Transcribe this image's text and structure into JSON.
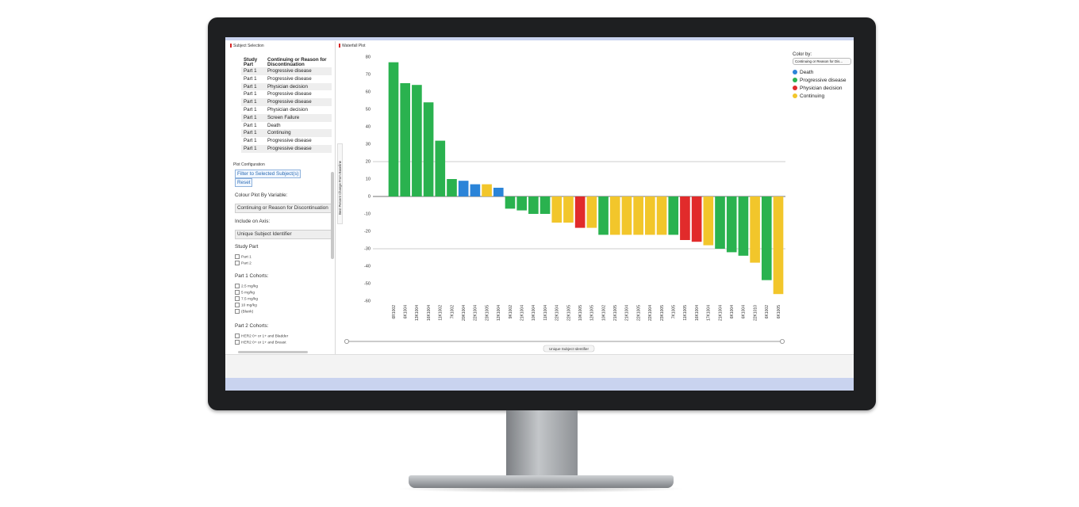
{
  "subject_panel": {
    "title": "Subject Selection",
    "columns": [
      "Study Part",
      "Continuing or Reason for Discontinuation"
    ],
    "rows": [
      [
        "Part 1",
        "Progressive disease"
      ],
      [
        "Part 1",
        "Progressive disease"
      ],
      [
        "Part 1",
        "Physician decision"
      ],
      [
        "Part 1",
        "Progressive disease"
      ],
      [
        "Part 1",
        "Progressive disease"
      ],
      [
        "Part 1",
        "Physician decision"
      ],
      [
        "Part 1",
        "Screen Failure"
      ],
      [
        "Part 1",
        "Death"
      ],
      [
        "Part 1",
        "Continuing"
      ],
      [
        "Part 1",
        "Progressive disease"
      ],
      [
        "Part 1",
        "Progressive disease"
      ]
    ]
  },
  "config": {
    "title": "Plot Configuration",
    "filter_button": "Filter to Selected Subject(s)",
    "reset_button": "Reset",
    "colour_label": "Colour Plot By Variable:",
    "colour_value": "Continuing or Reason for Discontinuation",
    "axis_label": "Include on Axis:",
    "axis_value": "Unique Subject Identifier",
    "study_part_label": "Study Part",
    "study_parts": [
      "Part 1",
      "Part 2"
    ],
    "part1_label": "Part 1 Cohorts:",
    "part1_cohorts": [
      "2.5 mg/kg",
      "5 mg/kg",
      "7.5 mg/kg",
      "10 mg/kg",
      "(Blank)"
    ],
    "part2_label": "Part 2 Cohorts:",
    "part2_cohorts": [
      "HER2 0+ or 1+ and Bladder",
      "HER2 0+ or 1+ and Breast"
    ]
  },
  "plot_panel": {
    "title": "Waterfall Plot",
    "color_by_label": "Color by:",
    "color_by_value": "Continuing or Reason for Dis..."
  },
  "colors": {
    "Death": "#2b84d8",
    "Progressive disease": "#2ab24f",
    "Physician decision": "#e12b2b",
    "Continuing": "#f2c62b"
  },
  "chart_data": {
    "type": "bar",
    "title": "",
    "xlabel": "Unique Subject Identifier",
    "ylabel": "Best Percent Change From Baseline",
    "ylim": [
      -60,
      80
    ],
    "yticks": [
      80,
      70,
      60,
      50,
      40,
      30,
      20,
      10,
      0,
      -10,
      -20,
      -30,
      -40,
      -50,
      -60
    ],
    "reference_lines": [
      20,
      0,
      -30
    ],
    "legend": [
      "Death",
      "Progressive disease",
      "Physician decision",
      "Continuing"
    ],
    "legend_position": "top-right",
    "categories": [
      "6R1002",
      "6K1004",
      "13K1004",
      "16K1004",
      "11K1002",
      "7K1002",
      "20K1004",
      "22K1004",
      "23K1005",
      "12K1004",
      "9K1002",
      "21K1004",
      "10K1004",
      "11K1004",
      "22K1004",
      "22K1005",
      "10K1005",
      "12K1005",
      "10K1002",
      "21K1005",
      "21K1004",
      "22K1005",
      "22K1004",
      "23K1005",
      "7K1005",
      "11K1005",
      "16K1004",
      "17K1004",
      "21K1004",
      "6K1004",
      "6K1004",
      "22K1010",
      "6K1002",
      "6K1005"
    ],
    "values": [
      77,
      65,
      64,
      54,
      32,
      10,
      9,
      7,
      7,
      5,
      -7,
      -8,
      -10,
      -10,
      -15,
      -15,
      -18,
      -18,
      -22,
      -22,
      -22,
      -22,
      -22,
      -22,
      -22,
      -25,
      -26,
      -28,
      -30,
      -32,
      -34,
      -38,
      -48,
      -56
    ],
    "groups": [
      "Progressive disease",
      "Progressive disease",
      "Progressive disease",
      "Progressive disease",
      "Progressive disease",
      "Progressive disease",
      "Death",
      "Death",
      "Continuing",
      "Death",
      "Progressive disease",
      "Progressive disease",
      "Progressive disease",
      "Progressive disease",
      "Continuing",
      "Continuing",
      "Physician decision",
      "Continuing",
      "Progressive disease",
      "Continuing",
      "Continuing",
      "Continuing",
      "Continuing",
      "Continuing",
      "Progressive disease",
      "Physician decision",
      "Physician decision",
      "Continuing",
      "Progressive disease",
      "Progressive disease",
      "Progressive disease",
      "Continuing",
      "Progressive disease",
      "Continuing"
    ]
  }
}
